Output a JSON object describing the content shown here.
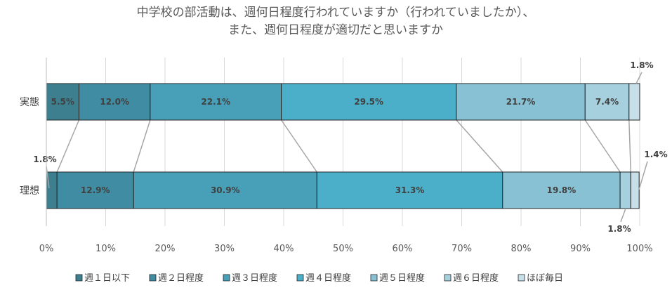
{
  "chart_data": {
    "type": "bar",
    "orientation": "horizontal",
    "stacked": "percent",
    "title": [
      "中学校の部活動は、週何日程度行われていますか（行われていましたか）、",
      "また、週何日程度が適切だと思いますか"
    ],
    "categories": [
      "実態",
      "理想"
    ],
    "series": [
      {
        "name": "週１日以下",
        "color": "#3d7f8f",
        "values": [
          5.5,
          1.8
        ],
        "labels": [
          "5.5%",
          "1.8%"
        ]
      },
      {
        "name": "週２日程度",
        "color": "#3f8ca3",
        "values": [
          12.0,
          12.9
        ],
        "labels": [
          "12.0%",
          "12.9%"
        ]
      },
      {
        "name": "週３日程度",
        "color": "#489fb8",
        "values": [
          22.1,
          30.9
        ],
        "labels": [
          "22.1%",
          "30.9%"
        ]
      },
      {
        "name": "週４日程度",
        "color": "#4cafc9",
        "values": [
          29.5,
          31.3
        ],
        "labels": [
          "29.5%",
          "31.3%"
        ]
      },
      {
        "name": "週５日程度",
        "color": "#88c1d3",
        "values": [
          21.7,
          19.8
        ],
        "labels": [
          "21.7%",
          "19.8%"
        ]
      },
      {
        "name": "週６日程度",
        "color": "#a7d0de",
        "values": [
          7.4,
          1.8
        ],
        "labels": [
          "7.4%",
          "1.8%"
        ]
      },
      {
        "name": "ほぼ毎日",
        "color": "#c6dfe8",
        "values": [
          1.8,
          1.4
        ],
        "labels": [
          "1.8%",
          "1.4%"
        ]
      }
    ],
    "xlim": [
      0,
      100
    ],
    "xticks": [
      "0%",
      "10%",
      "20%",
      "30%",
      "40%",
      "50%",
      "60%",
      "70%",
      "80%",
      "90%",
      "100%"
    ],
    "grid": true,
    "series_lines": true,
    "legend": "bottom"
  }
}
